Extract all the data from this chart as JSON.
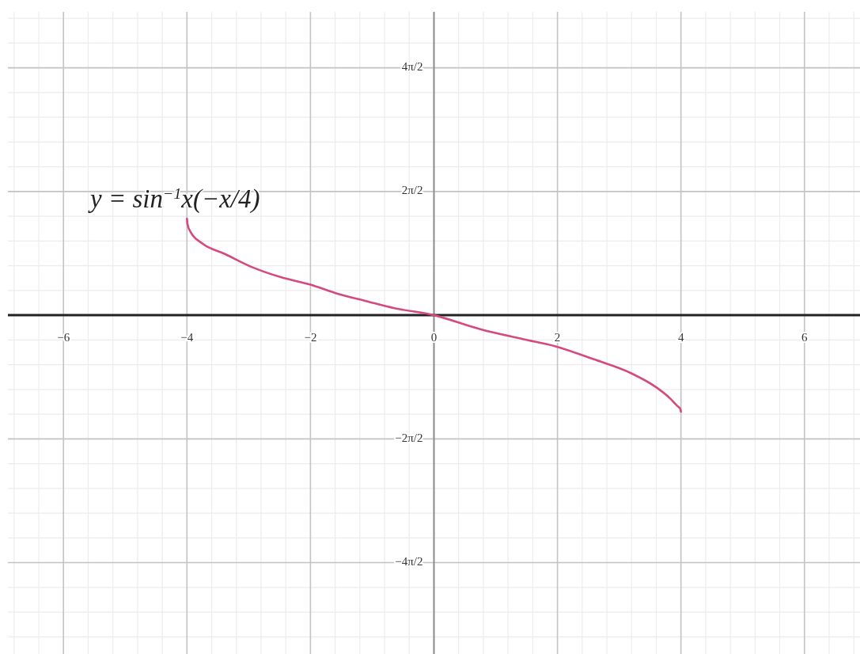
{
  "chart_data": {
    "type": "line",
    "x": [
      -4,
      -3.99,
      -3.94,
      -3.76,
      -3.38,
      -2.93,
      -2.47,
      -2.01,
      -1.55,
      -1.1,
      -0.64,
      0,
      0.76,
      1.45,
      1.97,
      2.59,
      3.19,
      3.6,
      3.83,
      3.94,
      3.99,
      4
    ],
    "series": [
      {
        "name": "y = sin$^{−1}$x(−x/4)",
        "color": "#d6497f",
        "values": [
          2.45,
          2.3,
          2.11,
          1.83,
          1.55,
          1.21,
          0.96,
          0.78,
          0.54,
          0.36,
          0.18,
          0,
          -0.36,
          -0.61,
          -0.79,
          -1.12,
          -1.47,
          -1.83,
          -2.12,
          -2.3,
          -2.38,
          -2.45
        ]
      }
    ],
    "xlim": [
      -6.9,
      6.9
    ],
    "ylim": [
      -8.6,
      7.7
    ],
    "xticks": [
      -6,
      -4,
      -2,
      0,
      2,
      4,
      6
    ],
    "yticks": [
      {
        "value": 6.28,
        "label": "4π/2"
      },
      {
        "value": 3.14,
        "label": "2π/2"
      },
      {
        "value": -3.14,
        "label": "−2π/2"
      },
      {
        "value": -6.28,
        "label": "−4π/2"
      }
    ],
    "grid": true
  }
}
